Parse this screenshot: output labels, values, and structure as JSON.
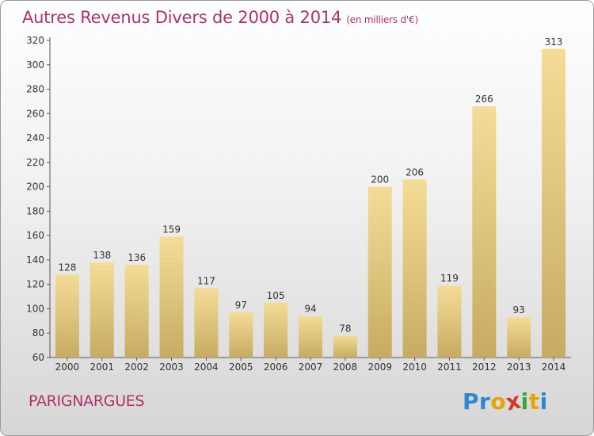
{
  "header": {
    "title": "Autres Revenus Divers de 2000 à 2014",
    "unit": "(en milliers d'€)"
  },
  "footer": {
    "place": "PARIGNARGUES",
    "logo_letters": [
      "P",
      "r",
      "o",
      "x",
      "i",
      "t",
      "i"
    ]
  },
  "colors": {
    "title": "#b0306a",
    "bar_light": "#f5dc96",
    "bar_dark": "#c7ab62",
    "axis": "#555555",
    "logo": [
      "#2e86d6",
      "#2e86d6",
      "#e8a400",
      "#d43a2a",
      "#3aa33a",
      "#e8a400",
      "#2e86d6"
    ]
  },
  "chart_data": {
    "type": "bar",
    "title": "Autres Revenus Divers de 2000 à 2014",
    "xlabel": "",
    "ylabel": "",
    "ylim": [
      60,
      320
    ],
    "yticks": [
      60,
      80,
      100,
      120,
      140,
      160,
      180,
      200,
      220,
      240,
      260,
      280,
      300,
      320
    ],
    "grid": false,
    "categories": [
      "2000",
      "2001",
      "2002",
      "2003",
      "2004",
      "2005",
      "2006",
      "2007",
      "2008",
      "2009",
      "2010",
      "2011",
      "2012",
      "2013",
      "2014"
    ],
    "values": [
      128,
      138,
      136,
      159,
      117,
      97,
      105,
      94,
      78,
      200,
      206,
      119,
      266,
      93,
      313
    ]
  }
}
